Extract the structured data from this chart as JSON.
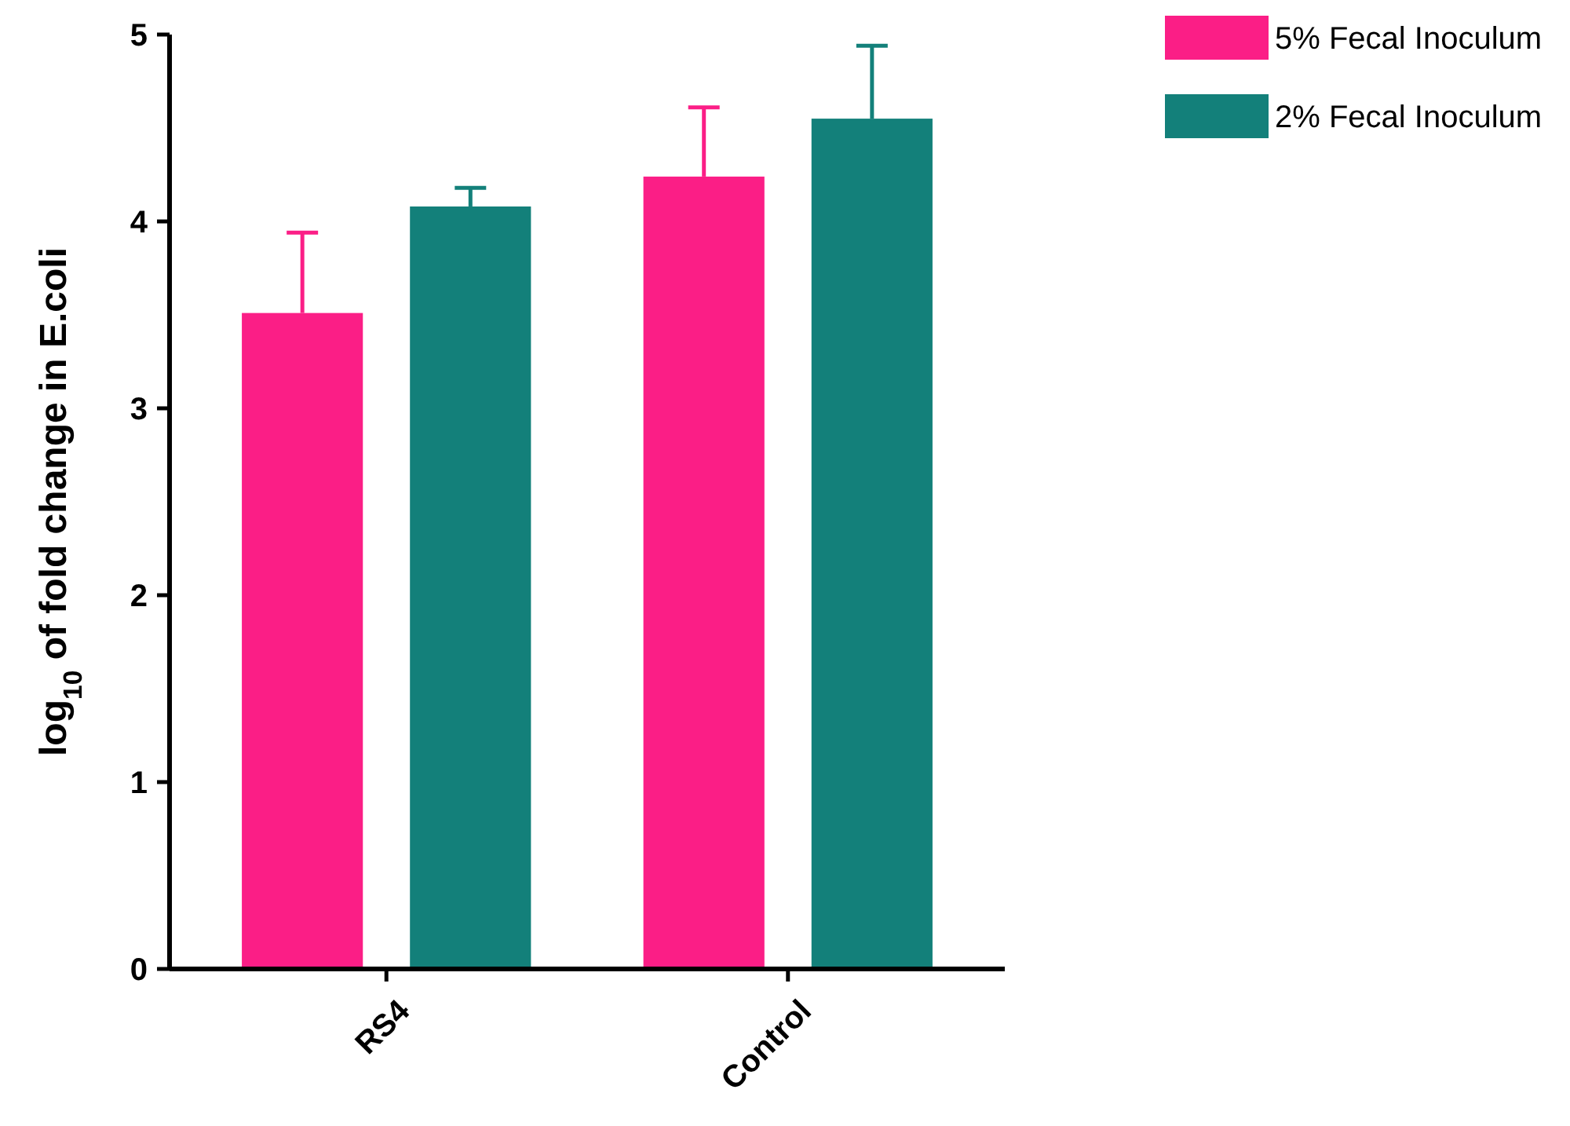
{
  "chart_data": {
    "type": "bar",
    "ylabel": "log$_{10}$ of fold change in E.coli",
    "categories": [
      "RS4",
      "Control"
    ],
    "series": [
      {
        "name": "5% Fecal Inoculum",
        "color": "#fb1e86",
        "values": [
          3.51,
          4.24
        ],
        "errors": [
          [
            3.51,
            3.94
          ],
          [
            4.24,
            4.61
          ]
        ]
      },
      {
        "name": "2% Fecal Inoculum",
        "color": "#13807a",
        "values": [
          4.08,
          4.55
        ],
        "errors": [
          [
            4.08,
            4.18
          ],
          [
            4.55,
            4.94
          ]
        ]
      }
    ],
    "ylim": [
      0,
      5
    ],
    "yticks": [
      0,
      1,
      2,
      3,
      4,
      5
    ],
    "legend": "top right",
    "grid": false
  }
}
